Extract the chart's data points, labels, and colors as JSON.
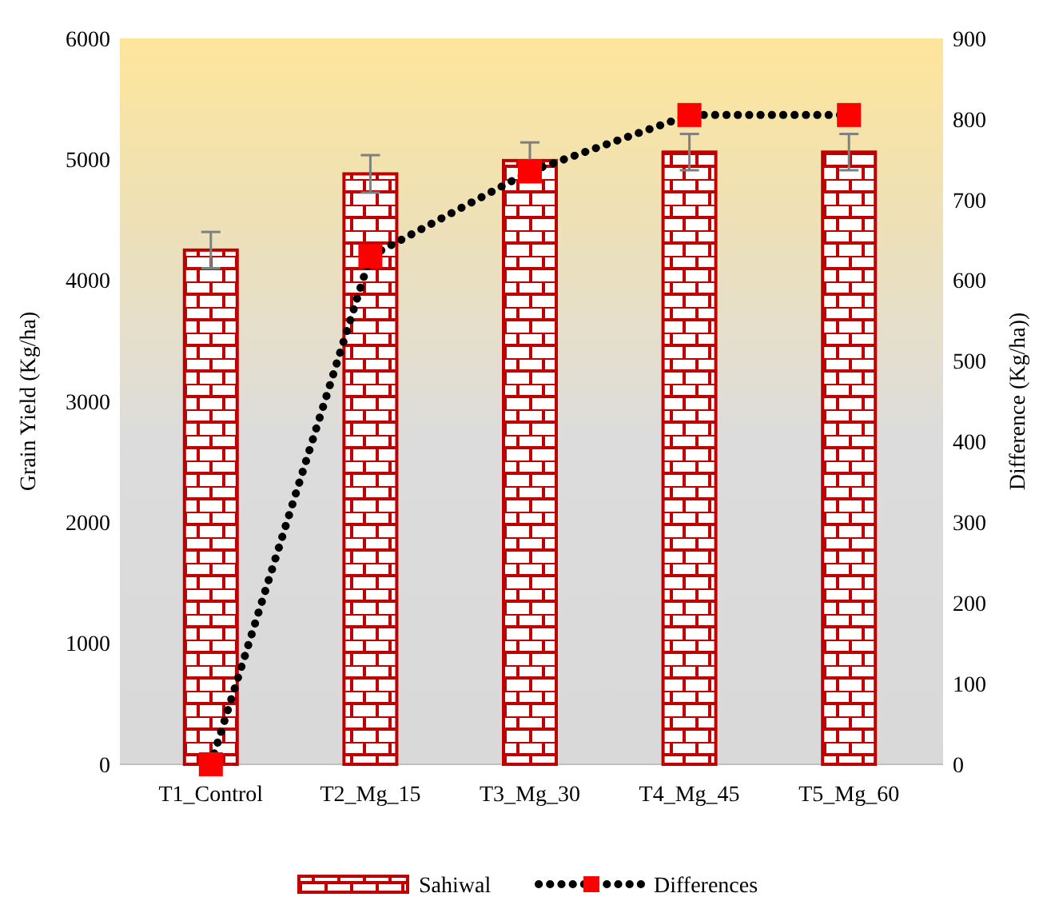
{
  "chart_data": {
    "type": "bar",
    "categories": [
      "T1_Control",
      "T2_Mg_15",
      "T3_Mg_30",
      "T4_Mg_45",
      "T5_Mg_60"
    ],
    "series": [
      {
        "name": "Sahiwal",
        "color": "#c00000",
        "values": [
          4250,
          4880,
          4990,
          5060,
          5060
        ],
        "errors": [
          150,
          155,
          150,
          150,
          150
        ]
      },
      {
        "name": "Differences",
        "type": "line",
        "axis": "y2",
        "color": "#ff0000",
        "values": [
          0,
          630,
          735,
          805,
          805
        ],
        "marker": "square",
        "line_style": "dotted"
      }
    ],
    "ylabel": "Grain Yield  (Kg/ha)",
    "y2label": "Difference (Kg/ha))",
    "ylim": [
      0,
      6000
    ],
    "yticks": [
      0,
      1000,
      2000,
      3000,
      4000,
      5000,
      6000
    ],
    "y2lim": [
      0,
      900
    ],
    "y2ticks": [
      0,
      100,
      200,
      300,
      400,
      500,
      600,
      700,
      800,
      900
    ],
    "legend": "bottom"
  }
}
